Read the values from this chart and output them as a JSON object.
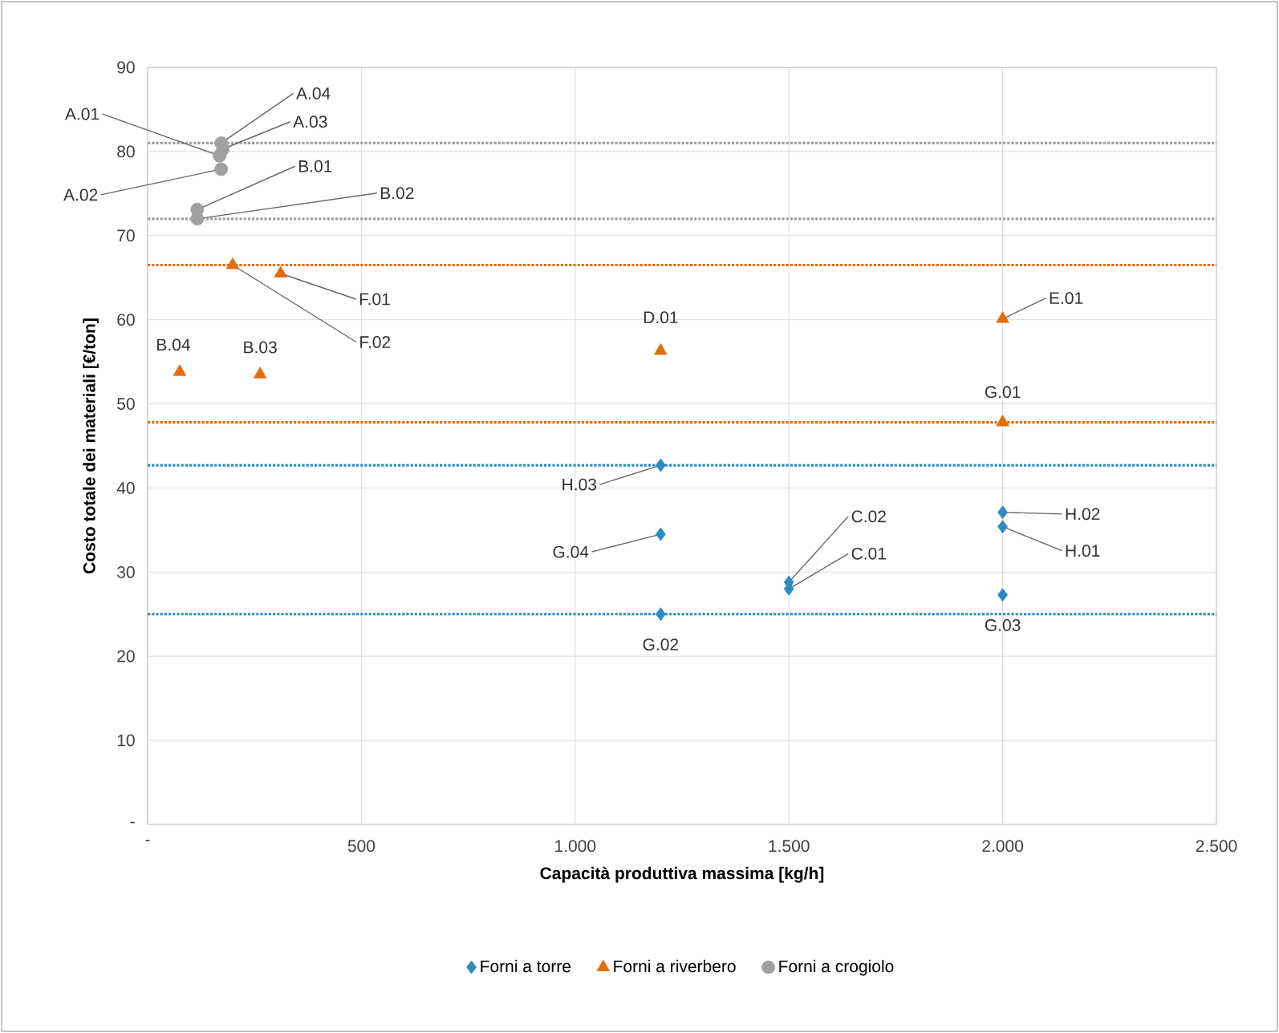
{
  "chart_data": {
    "type": "scatter",
    "xlabel": "Capacità produttiva massima [kg/h]",
    "ylabel": "Costo totale dei materiali [€/ton]",
    "series": [
      {
        "name": "Forni a torre",
        "color": "#2e8bc0",
        "marker": "diamond",
        "x": [
          1200,
          1200,
          1200,
          1500,
          1500,
          2000,
          2000,
          2000
        ],
        "values": [
          42.7,
          34.5,
          25.0,
          28.8,
          28.0,
          37.1,
          35.4,
          27.3
        ]
      },
      {
        "name": "Forni a riverbero",
        "color": "#e46c0a",
        "marker": "triangle",
        "x": [
          75,
          263,
          199,
          311,
          1200,
          2000,
          2000
        ],
        "values": [
          53.8,
          53.5,
          66.5,
          65.5,
          56.3,
          60.1,
          47.8
        ]
      },
      {
        "name": "Forni a crogiolo",
        "color": "#a0a0a0",
        "marker": "circle",
        "x": [
          172,
          176,
          168,
          172,
          116,
          116
        ],
        "values": [
          81.0,
          80.3,
          79.5,
          77.9,
          73.1,
          72.0
        ]
      }
    ],
    "xlim": [
      0,
      2500
    ],
    "xticks": [
      {
        "value": 0,
        "label": "-"
      },
      {
        "value": 500,
        "label": "500"
      },
      {
        "value": 1000,
        "label": "1.000"
      },
      {
        "value": 1500,
        "label": "1.500"
      },
      {
        "value": 2000,
        "label": "2.000"
      },
      {
        "value": 2500,
        "label": "2.500"
      }
    ],
    "ylim": [
      0,
      90
    ],
    "yticks": [
      {
        "value": 0,
        "label": "-"
      },
      10,
      20,
      30,
      40,
      50,
      60,
      70,
      80,
      90
    ],
    "grid": true,
    "legend": "bottom",
    "ref_lines": [
      {
        "axis": "y",
        "value": 81.0,
        "color": "#a0a0a0",
        "line_style": "dotted"
      },
      {
        "axis": "y",
        "value": 72.0,
        "color": "#a0a0a0",
        "line_style": "dotted"
      },
      {
        "axis": "y",
        "value": 66.5,
        "color": "#e46c0a",
        "line_style": "dotted"
      },
      {
        "axis": "y",
        "value": 47.8,
        "color": "#e46c0a",
        "line_style": "dotted"
      },
      {
        "axis": "y",
        "value": 42.7,
        "color": "#2e8bc0",
        "line_style": "dotted"
      },
      {
        "axis": "y",
        "value": 25.0,
        "color": "#2e8bc0",
        "line_style": "dotted"
      }
    ],
    "annotations": [
      {
        "text": "A.04",
        "x": 172,
        "y": 81.0
      },
      {
        "text": "A.03",
        "x": 176,
        "y": 80.3
      },
      {
        "text": "A.01",
        "x": 168,
        "y": 79.5
      },
      {
        "text": "A.02",
        "x": 172,
        "y": 77.9
      },
      {
        "text": "B.01",
        "x": 116,
        "y": 73.1
      },
      {
        "text": "B.02",
        "x": 116,
        "y": 72.0
      },
      {
        "text": "F.01",
        "x": 311,
        "y": 65.5
      },
      {
        "text": "F.02",
        "x": 199,
        "y": 66.5
      },
      {
        "text": "B.04",
        "x": 75,
        "y": 53.8
      },
      {
        "text": "B.03",
        "x": 263,
        "y": 53.5
      },
      {
        "text": "D.01",
        "x": 1200,
        "y": 56.3
      },
      {
        "text": "E.01",
        "x": 2000,
        "y": 60.1
      },
      {
        "text": "G.01",
        "x": 2000,
        "y": 47.8
      },
      {
        "text": "H.03",
        "x": 1200,
        "y": 42.7
      },
      {
        "text": "G.04",
        "x": 1200,
        "y": 34.5
      },
      {
        "text": "G.02",
        "x": 1200,
        "y": 25.0
      },
      {
        "text": "C.02",
        "x": 1500,
        "y": 28.8
      },
      {
        "text": "C.01",
        "x": 1500,
        "y": 28.0
      },
      {
        "text": "H.02",
        "x": 2000,
        "y": 37.1
      },
      {
        "text": "H.01",
        "x": 2000,
        "y": 35.4
      },
      {
        "text": "G.03",
        "x": 2000,
        "y": 27.3
      }
    ]
  }
}
